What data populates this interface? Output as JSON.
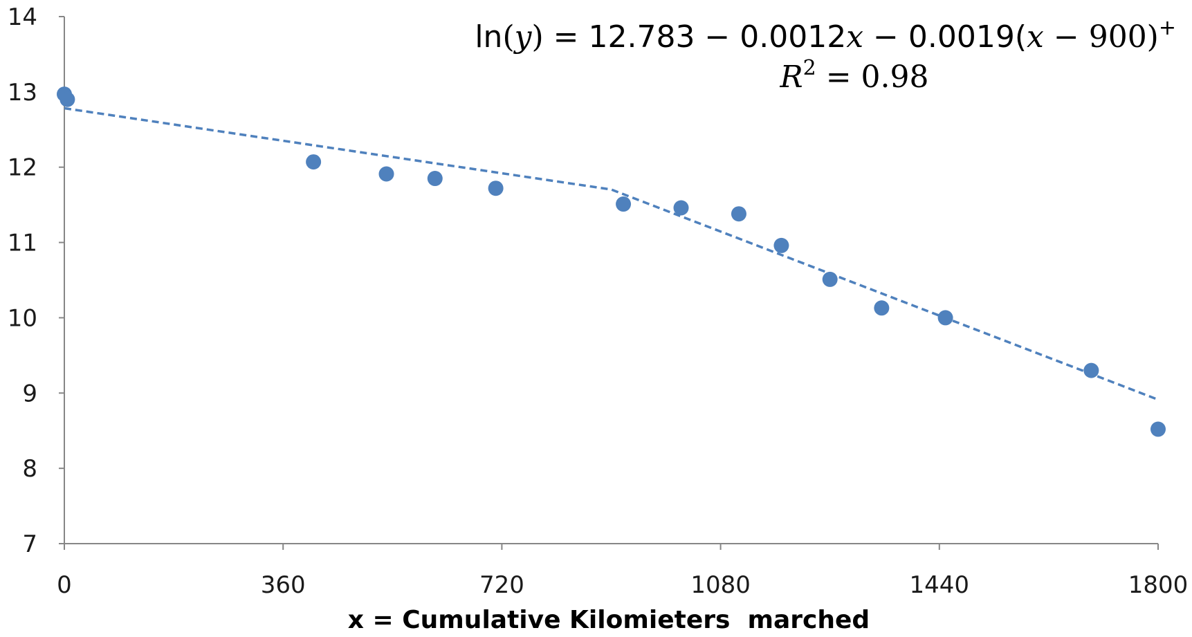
{
  "chart_data": {
    "type": "scatter",
    "title": "",
    "xlabel": "x = Cumulative Kilomieters  marched",
    "ylabel": "",
    "xlim": [
      0,
      1800
    ],
    "ylim": [
      7,
      14
    ],
    "xticks": [
      0,
      360,
      720,
      1080,
      1440,
      1800
    ],
    "yticks": [
      7,
      8,
      9,
      10,
      11,
      12,
      13,
      14
    ],
    "grid": false,
    "legend": "none",
    "colors": {
      "points": "#4f81bd",
      "trendline": "#4f81bd",
      "axis": "#868686"
    },
    "series": [
      {
        "x": [
          0,
          5,
          410,
          530,
          610,
          710,
          920,
          1015,
          1110,
          1180,
          1260,
          1345,
          1450,
          1690,
          1800
        ],
        "y": [
          12.97,
          12.9,
          12.07,
          11.91,
          11.85,
          11.72,
          11.51,
          11.46,
          11.38,
          10.96,
          10.51,
          10.13,
          10.0,
          9.3,
          8.52
        ]
      }
    ],
    "trendline": {
      "intercept": 12.783,
      "slope": -0.0012,
      "hinge_slope": -0.0019,
      "knot": 900,
      "x_range": [
        0,
        1800
      ],
      "dashed": true
    },
    "annotations": {
      "equation_lhs": "ln",
      "equation_var": "y",
      "equation_rhs_1": " = 12.783 − 0.0012",
      "equation_x1": "x",
      "equation_rhs_2": " − 0.0019(",
      "equation_x2": "x",
      "equation_rhs_3": " − 900)",
      "equation_sup": "+",
      "r2_label": "R",
      "r2_exp": "2",
      "r2_value": " = 0.98"
    }
  }
}
